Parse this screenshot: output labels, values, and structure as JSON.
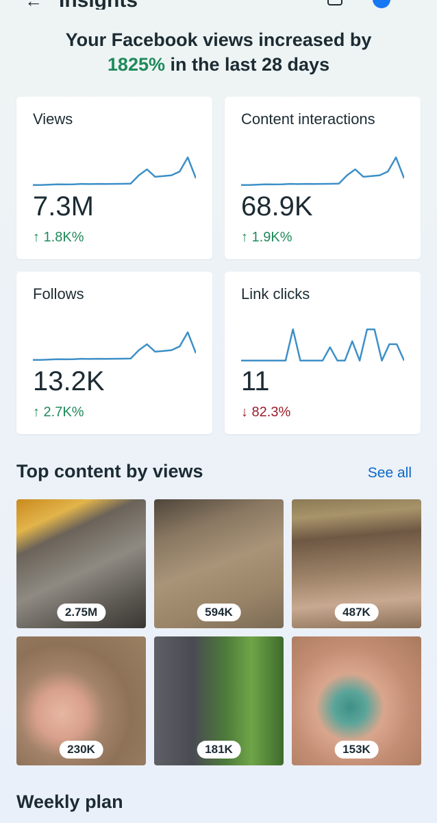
{
  "header": {
    "back_icon": "arrow-left-icon",
    "title": "Insights"
  },
  "summary": {
    "prefix": "Your Facebook views increased by",
    "percent": "1825%",
    "suffix": " in the last 28 days"
  },
  "metrics": [
    {
      "label": "Views",
      "value": "7.3M",
      "delta": "↑ 1.8K%",
      "trend": "up",
      "sparkline": [
        3,
        3,
        3.5,
        4,
        3.8,
        4,
        4.5,
        4.2,
        4.5,
        4.4,
        4.5,
        4.6,
        4.8,
        16,
        24,
        14,
        15,
        16,
        21,
        40,
        12
      ]
    },
    {
      "label": "Content interactions",
      "value": "68.9K",
      "delta": "↑ 1.9K%",
      "trend": "up",
      "sparkline": [
        3,
        3,
        3.5,
        4,
        3.8,
        4,
        4.5,
        4.2,
        4.5,
        4.4,
        4.5,
        4.6,
        4.8,
        16,
        24,
        14,
        15,
        16,
        21,
        40,
        12
      ]
    },
    {
      "label": "Follows",
      "value": "13.2K",
      "delta": "↑ 2.7K%",
      "trend": "up",
      "sparkline": [
        3,
        3,
        3.5,
        4,
        3.8,
        4,
        4.5,
        4.2,
        4.5,
        4.4,
        4.5,
        4.6,
        4.8,
        16,
        24,
        14,
        15,
        16,
        21,
        40,
        12
      ]
    },
    {
      "label": "Link clicks",
      "value": "11",
      "delta": "↓ 82.3%",
      "trend": "down",
      "sparkline": [
        2,
        2,
        2,
        2,
        2,
        2,
        2,
        44,
        2,
        2,
        2,
        2,
        20,
        2,
        2,
        28,
        2,
        44,
        44,
        2,
        24,
        24,
        2
      ]
    }
  ],
  "top_content": {
    "title": "Top content by views",
    "see_all": "See all",
    "items": [
      {
        "views": "2.75M"
      },
      {
        "views": "594K"
      },
      {
        "views": "487K"
      },
      {
        "views": "230K"
      },
      {
        "views": "181K"
      },
      {
        "views": "153K"
      }
    ]
  },
  "weekly_plan": {
    "title": "Weekly plan"
  },
  "colors": {
    "accent_green": "#1e8a5a",
    "decline_red": "#9a1b2a",
    "sparkline": "#3d8fc7",
    "link_blue": "#0a67c8"
  }
}
